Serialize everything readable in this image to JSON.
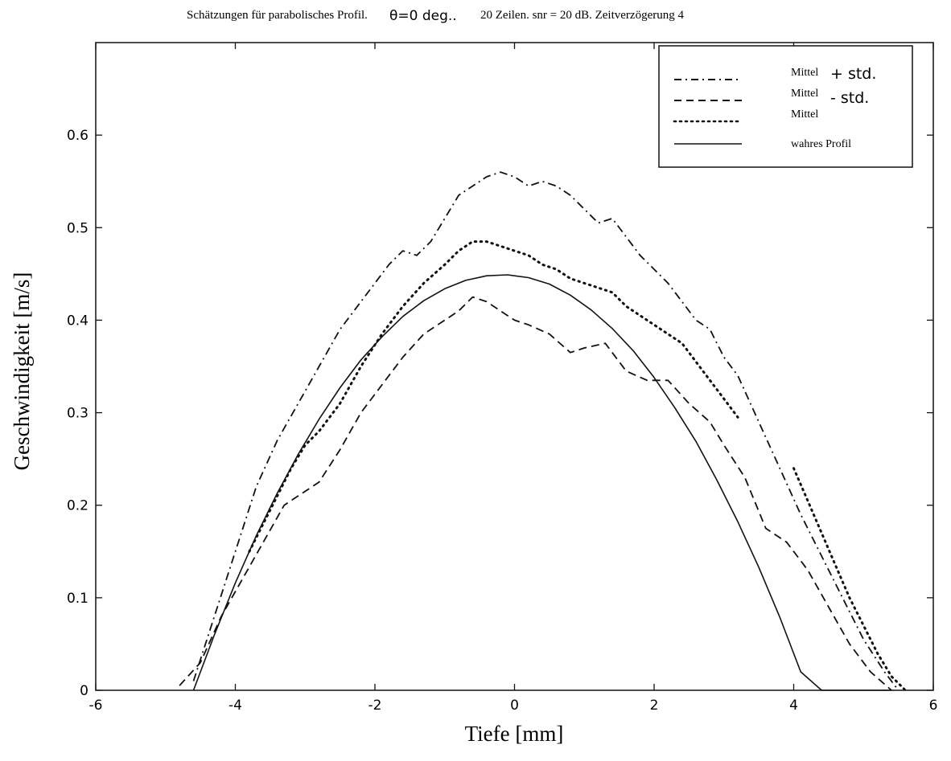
{
  "chart_data": {
    "type": "line",
    "title": {
      "part1": "Schätzungen für parabolisches Profil.",
      "part2": "θ=0 deg..",
      "part3": "20 Zeilen. snr = 20 dB. Zeitverzögerung 4"
    },
    "xlabel": "Tiefe [mm]",
    "ylabel": "Geschwindigkeit [m/s]",
    "xlim": [
      -6,
      6
    ],
    "ylim": [
      0,
      0.7
    ],
    "x_ticks": [
      -6,
      -4,
      -2,
      0,
      2,
      4,
      6
    ],
    "x_tick_labels": [
      "-6",
      "-4",
      "-2",
      "0",
      "2",
      "4",
      "6"
    ],
    "y_ticks": [
      0,
      0.1,
      0.2,
      0.3,
      0.4,
      0.5,
      0.6
    ],
    "y_tick_labels": [
      "0",
      "0.1",
      "0.2",
      "0.3",
      "0.4",
      "0.5",
      "0.6"
    ],
    "grid": false,
    "legend_position": "top-right",
    "legend": [
      {
        "label": "Mittel",
        "suffix": "+ std.",
        "style": "dashdot"
      },
      {
        "label": "Mittel",
        "suffix": "- std.",
        "style": "dashed"
      },
      {
        "label": "Mittel",
        "suffix": "",
        "style": "dotted"
      },
      {
        "label": "wahres Profil",
        "suffix": "",
        "style": "solid"
      }
    ],
    "series": [
      {
        "name": "Mittel + std.",
        "style": "dashdot",
        "x": [
          -4.6,
          -4.3,
          -4.0,
          -3.7,
          -3.4,
          -3.1,
          -2.8,
          -2.5,
          -2.2,
          -2.0,
          -1.8,
          -1.6,
          -1.4,
          -1.2,
          -1.0,
          -0.8,
          -0.6,
          -0.4,
          -0.2,
          0.0,
          0.2,
          0.4,
          0.6,
          0.8,
          1.0,
          1.2,
          1.4,
          1.6,
          1.8,
          2.0,
          2.2,
          2.4,
          2.6,
          2.8,
          3.0,
          3.2,
          3.5,
          3.8,
          4.1,
          4.4,
          4.7,
          5.0,
          5.3,
          5.5
        ],
        "y": [
          0.01,
          0.08,
          0.15,
          0.22,
          0.27,
          0.31,
          0.35,
          0.39,
          0.42,
          0.44,
          0.46,
          0.475,
          0.47,
          0.485,
          0.51,
          0.535,
          0.545,
          0.555,
          0.56,
          0.555,
          0.545,
          0.55,
          0.545,
          0.535,
          0.52,
          0.505,
          0.51,
          0.49,
          0.47,
          0.455,
          0.44,
          0.42,
          0.4,
          0.39,
          0.36,
          0.34,
          0.29,
          0.24,
          0.19,
          0.145,
          0.1,
          0.055,
          0.02,
          0.0
        ]
      },
      {
        "name": "Mittel - std.",
        "style": "dashed",
        "x": [
          -4.8,
          -4.5,
          -4.2,
          -3.9,
          -3.6,
          -3.3,
          -3.0,
          -2.8,
          -2.5,
          -2.2,
          -1.9,
          -1.6,
          -1.3,
          -1.0,
          -0.8,
          -0.6,
          -0.4,
          -0.2,
          0.0,
          0.2,
          0.5,
          0.8,
          1.0,
          1.3,
          1.6,
          1.9,
          2.2,
          2.5,
          2.8,
          3.0,
          3.3,
          3.6,
          3.9,
          4.2,
          4.5,
          4.8,
          5.1,
          5.4
        ],
        "y": [
          0.005,
          0.03,
          0.08,
          0.12,
          0.16,
          0.2,
          0.215,
          0.225,
          0.26,
          0.3,
          0.33,
          0.36,
          0.385,
          0.4,
          0.41,
          0.425,
          0.42,
          0.41,
          0.4,
          0.395,
          0.385,
          0.365,
          0.37,
          0.375,
          0.345,
          0.335,
          0.335,
          0.31,
          0.29,
          0.265,
          0.23,
          0.175,
          0.16,
          0.13,
          0.09,
          0.05,
          0.02,
          0.0
        ]
      },
      {
        "name": "Mittel",
        "style": "dotted",
        "x": [
          -3.8,
          -3.6,
          -3.4,
          -3.2,
          -3.0,
          -2.8,
          -2.5,
          -2.2,
          -1.9,
          -1.6,
          -1.3,
          -1.0,
          -0.8,
          -0.6,
          -0.4,
          -0.2,
          0.0,
          0.2,
          0.4,
          0.6,
          0.8,
          1.0,
          1.2,
          1.4,
          1.6,
          1.8,
          2.0,
          2.2,
          2.4,
          2.6,
          2.8,
          3.0,
          3.2
        ],
        "y": [
          0.15,
          0.18,
          0.21,
          0.24,
          0.265,
          0.28,
          0.31,
          0.35,
          0.385,
          0.415,
          0.44,
          0.46,
          0.475,
          0.485,
          0.485,
          0.48,
          0.475,
          0.47,
          0.46,
          0.455,
          0.445,
          0.44,
          0.435,
          0.43,
          0.415,
          0.405,
          0.395,
          0.385,
          0.375,
          0.355,
          0.335,
          0.315,
          0.295
        ]
      },
      {
        "name": "Mittel",
        "style": "dotted",
        "x": [
          4.0,
          4.2,
          4.4,
          4.6,
          4.8,
          5.0,
          5.2,
          5.4,
          5.6
        ],
        "y": [
          0.24,
          0.205,
          0.17,
          0.135,
          0.1,
          0.07,
          0.04,
          0.015,
          0.0
        ]
      },
      {
        "name": "wahres Profil",
        "style": "solid",
        "x": [
          -4.6,
          -4.3,
          -4.0,
          -3.7,
          -3.4,
          -3.1,
          -2.8,
          -2.5,
          -2.2,
          -1.9,
          -1.6,
          -1.3,
          -1.0,
          -0.7,
          -0.4,
          -0.1,
          0.2,
          0.5,
          0.8,
          1.1,
          1.4,
          1.7,
          2.0,
          2.3,
          2.6,
          2.9,
          3.2,
          3.5,
          3.8,
          4.1,
          4.4,
          4.7,
          5.0,
          5.3,
          5.4
        ],
        "y": [
          0.0,
          0.06,
          0.116,
          0.167,
          0.213,
          0.255,
          0.293,
          0.327,
          0.357,
          0.382,
          0.404,
          0.421,
          0.434,
          0.443,
          0.448,
          0.449,
          0.446,
          0.439,
          0.427,
          0.411,
          0.391,
          0.367,
          0.338,
          0.305,
          0.269,
          0.227,
          0.182,
          0.133,
          0.079,
          0.02,
          0.0,
          0.0,
          0.0,
          0.0,
          0.0
        ]
      }
    ]
  }
}
